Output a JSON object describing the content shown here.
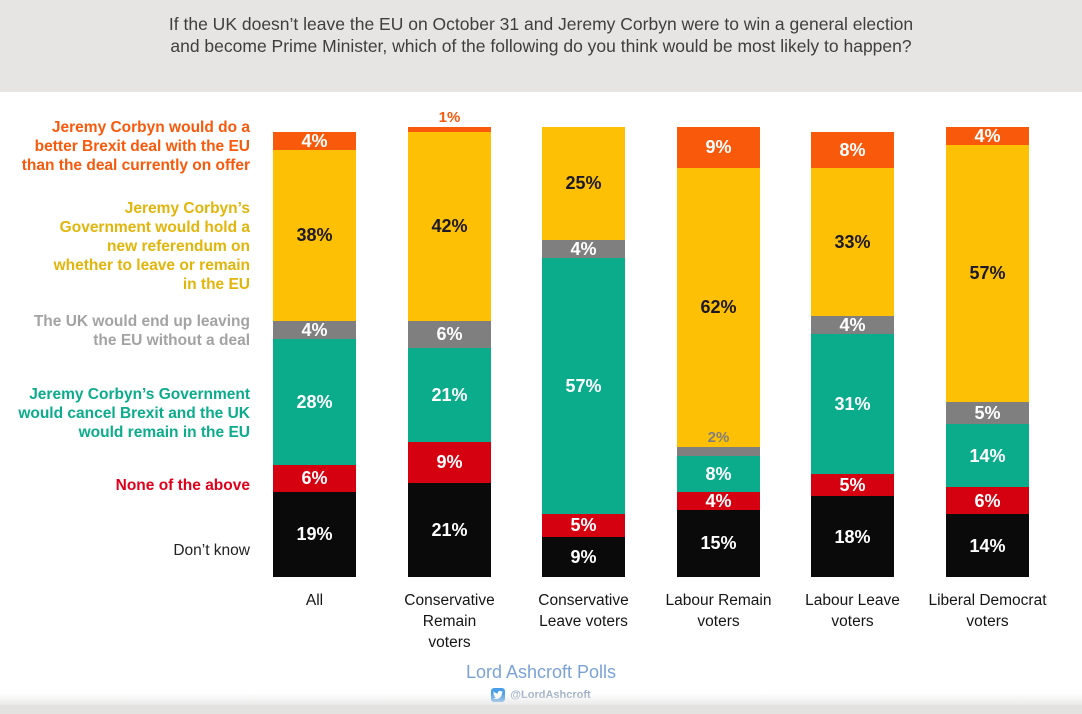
{
  "title": "If the UK doesn’t leave the EU on October 31 and Jeremy Corbyn were to win a general election and become Prime Minister, which of the following do you think would be most likely to happen?",
  "chart_data": {
    "type": "bar",
    "subtype": "stacked-vertical",
    "value_suffix": "%",
    "legend_position": "left",
    "categories": [
      "All",
      "Conservative Remain voters",
      "Conservative Leave voters",
      "Labour Remain voters",
      "Labour Leave voters",
      "Liberal Democrat voters"
    ],
    "series": [
      {
        "name": "Jeremy Corbyn would do a better Brexit deal with the EU than the deal currently on offer",
        "color": "#F8590B",
        "legend_color": "#F8590B",
        "label_color": "#FFFFFF",
        "values": [
          4,
          1,
          0,
          9,
          8,
          4
        ]
      },
      {
        "name": "Jeremy Corbyn’s Government would hold a new referendum on whether to leave or remain in the EU",
        "color": "#FEC004",
        "legend_color": "#E2B50A",
        "label_color": "#1C1926",
        "values": [
          38,
          42,
          25,
          62,
          33,
          57
        ]
      },
      {
        "name": "The UK would end up leaving the EU without a deal",
        "color": "#7F7F7F",
        "legend_color": "#A3A3A3",
        "label_color": "#FFFFFF",
        "values": [
          4,
          6,
          4,
          2,
          4,
          5
        ]
      },
      {
        "name": "Jeremy Corbyn’s Government would cancel Brexit and the UK would remain in the EU",
        "color": "#0BAC8C",
        "legend_color": "#0BAC8C",
        "label_color": "#FFFFFF",
        "values": [
          28,
          21,
          57,
          8,
          31,
          14
        ]
      },
      {
        "name": "None of the above",
        "color": "#D50110",
        "legend_color": "#E1001B",
        "label_color": "#FFFFFF",
        "values": [
          6,
          9,
          5,
          4,
          5,
          6
        ]
      },
      {
        "name": "Don’t know",
        "color": "#0A0A0A",
        "legend_color": "#222222",
        "label_color": "#FFFFFF",
        "values": [
          19,
          21,
          9,
          15,
          18,
          14
        ]
      }
    ]
  },
  "footer": {
    "brand": "Lord Ashcroft Polls",
    "brand_color": "#7BA2D7",
    "twitter_handle": "@LordAshcroft"
  }
}
